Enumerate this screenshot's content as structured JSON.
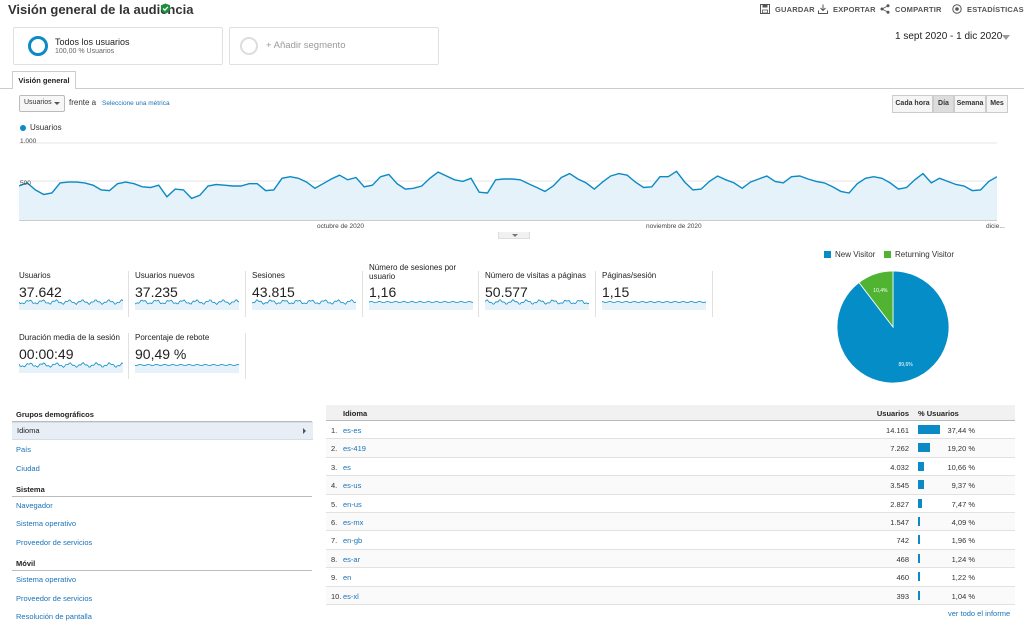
{
  "header": {
    "title": "Visión general de la audiencia",
    "tools": [
      {
        "label": "GUARDAR",
        "icon": "save-icon"
      },
      {
        "label": "EXPORTAR",
        "icon": "export-icon"
      },
      {
        "label": "COMPARTIR",
        "icon": "share-icon"
      },
      {
        "label": "ESTADÍSTICAS",
        "icon": "insights-icon"
      }
    ]
  },
  "segments": {
    "active_name": "Todos los usuarios",
    "active_sub": "100,00 % Usuarios",
    "add_label": "+ Añadir segmento"
  },
  "date_range": "1 sept 2020 - 1 dic 2020",
  "tab": "Visión general",
  "controls": {
    "metric": "Usuarios",
    "versus": "frente a",
    "select_metric": "Seleccione una métrica",
    "granularity": [
      "Cada hora",
      "Día",
      "Semana",
      "Mes"
    ],
    "granularity_selected": "Día"
  },
  "chart_data": {
    "type": "area",
    "series": [
      {
        "name": "Usuarios",
        "values": [
          440,
          480,
          390,
          330,
          350,
          480,
          490,
          490,
          480,
          450,
          390,
          380,
          470,
          490,
          470,
          430,
          420,
          450,
          300,
          400,
          390,
          280,
          320,
          440,
          460,
          450,
          440,
          440,
          470,
          470,
          380,
          390,
          540,
          560,
          540,
          490,
          410,
          470,
          530,
          580,
          520,
          550,
          430,
          450,
          560,
          590,
          470,
          400,
          410,
          440,
          540,
          620,
          570,
          520,
          500,
          540,
          360,
          350,
          520,
          530,
          530,
          520,
          470,
          420,
          370,
          440,
          550,
          600,
          530,
          480,
          400,
          490,
          570,
          600,
          580,
          490,
          420,
          430,
          560,
          560,
          630,
          490,
          390,
          400,
          500,
          570,
          520,
          480,
          410,
          490,
          530,
          570,
          500,
          480,
          560,
          570,
          530,
          500,
          480,
          430,
          370,
          350,
          470,
          540,
          560,
          540,
          480,
          400,
          420,
          520,
          600,
          480,
          540,
          500,
          460,
          440,
          380,
          390,
          500,
          560
        ]
      }
    ],
    "y_ticks": [
      "1.000",
      "500"
    ],
    "ylim": [
      0,
      1100
    ],
    "x_ticks": [
      "octubre de 2020",
      "noviembre de 2020",
      "dicie..."
    ],
    "color": "#0b8ac6",
    "fill": "#e6f2f9",
    "grid": false
  },
  "metrics": [
    {
      "label": "Usuarios",
      "value": "37.642"
    },
    {
      "label": "Usuarios nuevos",
      "value": "37.235"
    },
    {
      "label": "Sesiones",
      "value": "43.815"
    },
    {
      "label": "Número de sesiones por usuario",
      "value": "1,16"
    },
    {
      "label": "Número de visitas a páginas",
      "value": "50.577"
    },
    {
      "label": "Páginas/sesión",
      "value": "1,15"
    },
    {
      "label": "Duración media de la sesión",
      "value": "00:00:49"
    },
    {
      "label": "Porcentaje de rebote",
      "value": "90,49 %"
    }
  ],
  "pie": {
    "legend": [
      {
        "label": "New Visitor",
        "color": "#058dc7"
      },
      {
        "label": "Returning Visitor",
        "color": "#50b432"
      }
    ],
    "slices": [
      {
        "label": "89,6%",
        "value": 89.6,
        "color": "#058dc7"
      },
      {
        "label": "10,4%",
        "value": 10.4,
        "color": "#50b432"
      }
    ]
  },
  "demographics": {
    "section1": "Grupos demográficos",
    "section1_items": [
      "Idioma",
      "País",
      "Ciudad"
    ],
    "section2": "Sistema",
    "section2_items": [
      "Navegador",
      "Sistema operativo",
      "Proveedor de servicios"
    ],
    "section3": "Móvil",
    "section3_items": [
      "Sistema operativo",
      "Proveedor de servicios",
      "Resolución de pantalla"
    ]
  },
  "table": {
    "col_lang": "Idioma",
    "col_users": "Usuarios",
    "col_pct": "% Usuarios",
    "rows": [
      {
        "rank": "1.",
        "lang": "es-es",
        "users": "14.161",
        "pct": "37,44 %",
        "share": 37.44
      },
      {
        "rank": "2.",
        "lang": "es-419",
        "users": "7.262",
        "pct": "19,20 %",
        "share": 19.2
      },
      {
        "rank": "3.",
        "lang": "es",
        "users": "4.032",
        "pct": "10,66 %",
        "share": 10.66
      },
      {
        "rank": "4.",
        "lang": "es-us",
        "users": "3.545",
        "pct": "9,37 %",
        "share": 9.37
      },
      {
        "rank": "5.",
        "lang": "en-us",
        "users": "2.827",
        "pct": "7,47 %",
        "share": 7.47
      },
      {
        "rank": "6.",
        "lang": "es-mx",
        "users": "1.547",
        "pct": "4,09 %",
        "share": 4.09
      },
      {
        "rank": "7.",
        "lang": "en-gb",
        "users": "742",
        "pct": "1,96 %",
        "share": 1.96
      },
      {
        "rank": "8.",
        "lang": "es-ar",
        "users": "468",
        "pct": "1,24 %",
        "share": 1.24
      },
      {
        "rank": "9.",
        "lang": "en",
        "users": "460",
        "pct": "1,22 %",
        "share": 1.22
      },
      {
        "rank": "10.",
        "lang": "es-xl",
        "users": "393",
        "pct": "1,04 %",
        "share": 1.04
      }
    ],
    "view_all": "ver todo el informe"
  }
}
